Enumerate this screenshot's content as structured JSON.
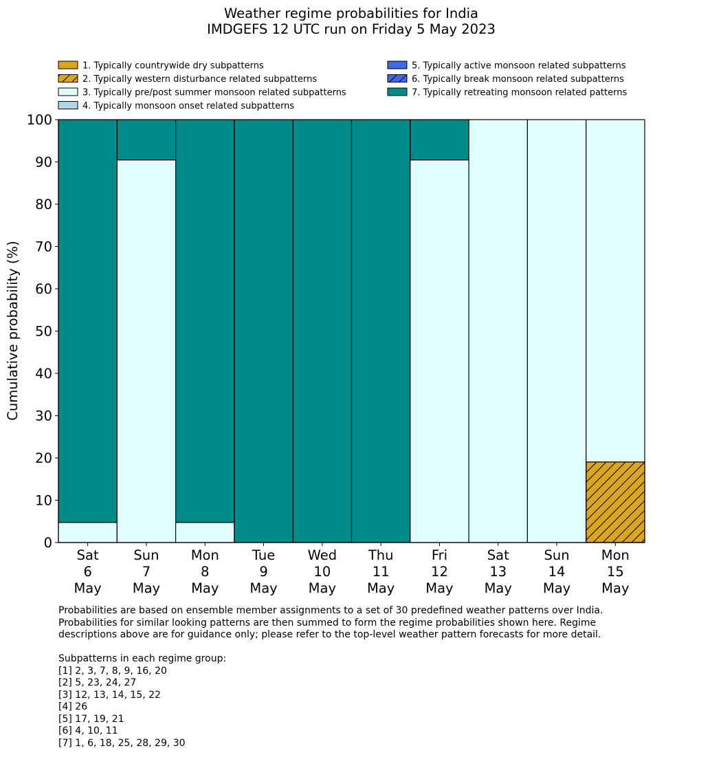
{
  "chart_data": {
    "type": "bar",
    "stacked": true,
    "title": [
      "Weather regime probabilities for India",
      "IMDGEFS 12 UTC run on Friday 5 May 2023"
    ],
    "ylabel": "Cumulative probability (%)",
    "xlabel": "",
    "ylim": [
      0,
      100
    ],
    "yticks": [
      0,
      10,
      20,
      30,
      40,
      50,
      60,
      70,
      80,
      90,
      100
    ],
    "categories": [
      [
        "Sat",
        "6",
        "May"
      ],
      [
        "Sun",
        "7",
        "May"
      ],
      [
        "Mon",
        "8",
        "May"
      ],
      [
        "Tue",
        "9",
        "May"
      ],
      [
        "Wed",
        "10",
        "May"
      ],
      [
        "Thu",
        "11",
        "May"
      ],
      [
        "Fri",
        "12",
        "May"
      ],
      [
        "Sat",
        "13",
        "May"
      ],
      [
        "Sun",
        "14",
        "May"
      ],
      [
        "Mon",
        "15",
        "May"
      ]
    ],
    "legend_placement": "top",
    "series": [
      {
        "name": "1. Typically countrywide dry subpatterns",
        "color": "#DAA520",
        "hatch": false,
        "values": [
          0,
          0,
          0,
          0,
          0,
          0,
          0,
          0,
          0,
          0
        ]
      },
      {
        "name": "2. Typically western disturbance related subpatterns",
        "color": "#DAA520",
        "hatch": true,
        "values": [
          0,
          0,
          0,
          0,
          0,
          0,
          0,
          0,
          0,
          19.05
        ]
      },
      {
        "name": "3. Typically pre/post summer monsoon related subpatterns",
        "color": "#E0FFFF",
        "hatch": false,
        "values": [
          4.76,
          90.48,
          4.76,
          0,
          0,
          0,
          90.48,
          100,
          100,
          80.95
        ]
      },
      {
        "name": "4. Typically monsoon onset related subpatterns",
        "color": "#ADD8E6",
        "hatch": false,
        "values": [
          0,
          0,
          0,
          0,
          0,
          0,
          0,
          0,
          0,
          0
        ]
      },
      {
        "name": "5. Typically active monsoon related subpatterns",
        "color": "#4169E1",
        "hatch": false,
        "values": [
          0,
          0,
          0,
          0,
          0,
          0,
          0,
          0,
          0,
          0
        ]
      },
      {
        "name": "6. Typically break monsoon related subpatterns",
        "color": "#4169E1",
        "hatch": true,
        "values": [
          0,
          0,
          0,
          0,
          0,
          0,
          0,
          0,
          0,
          0
        ]
      },
      {
        "name": "7. Typically retreating monsoon related patterns",
        "color": "#008B8B",
        "hatch": false,
        "values": [
          95.24,
          9.52,
          95.24,
          100,
          100,
          100,
          9.52,
          0,
          0,
          0
        ]
      }
    ]
  },
  "notes": [
    "Probabilities are based on ensemble member assignments to a set of 30 predefined weather patterns over India.",
    "Probabilities for similar looking patterns are then summed to form the regime probabilities shown here. Regime",
    "descriptions above are for guidance only; please refer to the top-level weather pattern forecasts for more detail.",
    "",
    "Subpatterns in each regime group:",
    "[1] 2, 3, 7, 8, 9, 16, 20",
    "[2] 5, 23, 24, 27",
    "[3] 12, 13, 14, 15, 22",
    "[4] 26",
    "[5] 17, 19, 21",
    "[6] 4, 10, 11",
    "[7] 1, 6, 18, 25, 28, 29, 30"
  ]
}
